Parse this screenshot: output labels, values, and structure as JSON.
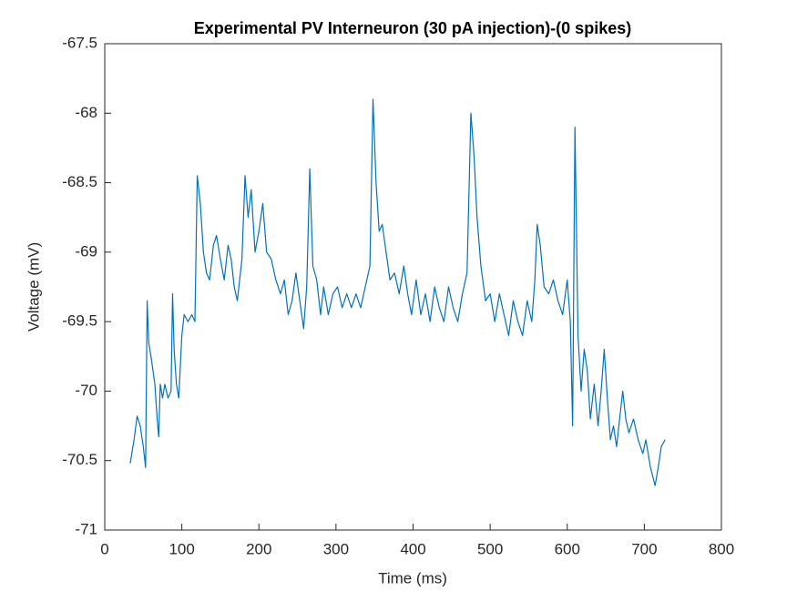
{
  "chart_data": {
    "type": "line",
    "title": "Experimental PV Interneuron (30 pA injection)-(0 spikes)",
    "xlabel": "Time (ms)",
    "ylabel": "Voltage (mV)",
    "x": [
      33,
      38,
      42,
      46,
      50,
      53,
      55,
      57,
      60,
      65,
      68,
      70,
      72,
      75,
      78,
      82,
      86,
      88,
      90,
      93,
      96,
      100,
      103,
      108,
      113,
      117,
      120,
      124,
      128,
      132,
      136,
      141,
      145,
      150,
      155,
      160,
      164,
      168,
      172,
      178,
      182,
      186,
      190,
      195,
      200,
      205,
      210,
      216,
      222,
      228,
      233,
      238,
      243,
      248,
      253,
      258,
      262,
      266,
      270,
      275,
      280,
      284,
      290,
      296,
      302,
      308,
      314,
      320,
      326,
      332,
      338,
      344,
      348,
      352,
      356,
      360,
      365,
      370,
      376,
      382,
      388,
      393,
      398,
      404,
      410,
      416,
      422,
      428,
      434,
      440,
      446,
      452,
      458,
      464,
      470,
      475,
      479,
      483,
      488,
      494,
      500,
      506,
      512,
      518,
      524,
      530,
      536,
      542,
      548,
      554,
      558,
      561,
      565,
      570,
      576,
      582,
      588,
      594,
      600,
      604,
      607,
      610,
      614,
      618,
      622,
      626,
      630,
      635,
      640,
      644,
      648,
      652,
      656,
      660,
      664,
      668,
      672,
      676,
      680,
      686,
      692,
      698,
      702,
      708,
      714,
      718,
      722,
      727
    ],
    "series": [
      {
        "color": "#0072bd",
        "values": [
          -70.52,
          -70.35,
          -70.18,
          -70.25,
          -70.4,
          -70.55,
          -69.35,
          -69.65,
          -69.75,
          -69.95,
          -70.2,
          -70.33,
          -69.95,
          -70.05,
          -69.95,
          -70.05,
          -70.0,
          -69.3,
          -69.7,
          -69.95,
          -70.05,
          -69.6,
          -69.45,
          -69.5,
          -69.45,
          -69.5,
          -68.45,
          -68.65,
          -69.0,
          -69.15,
          -69.2,
          -68.95,
          -68.88,
          -69.05,
          -69.2,
          -68.95,
          -69.05,
          -69.25,
          -69.35,
          -69.05,
          -68.45,
          -68.75,
          -68.55,
          -69.0,
          -68.85,
          -68.65,
          -69.0,
          -69.05,
          -69.2,
          -69.3,
          -69.2,
          -69.45,
          -69.35,
          -69.15,
          -69.35,
          -69.55,
          -69.25,
          -68.4,
          -69.1,
          -69.2,
          -69.45,
          -69.25,
          -69.45,
          -69.3,
          -69.25,
          -69.4,
          -69.3,
          -69.4,
          -69.3,
          -69.4,
          -69.25,
          -69.1,
          -67.9,
          -68.5,
          -68.85,
          -68.8,
          -69.0,
          -69.2,
          -69.15,
          -69.3,
          -69.1,
          -69.3,
          -69.45,
          -69.2,
          -69.45,
          -69.3,
          -69.5,
          -69.25,
          -69.4,
          -69.5,
          -69.25,
          -69.4,
          -69.5,
          -69.3,
          -69.15,
          -68.0,
          -68.3,
          -68.75,
          -69.1,
          -69.35,
          -69.3,
          -69.5,
          -69.3,
          -69.45,
          -69.6,
          -69.35,
          -69.5,
          -69.6,
          -69.35,
          -69.5,
          -69.2,
          -68.8,
          -68.95,
          -69.25,
          -69.3,
          -69.2,
          -69.35,
          -69.45,
          -69.2,
          -69.5,
          -70.25,
          -68.1,
          -69.6,
          -70.0,
          -69.7,
          -69.85,
          -70.2,
          -69.95,
          -70.25,
          -70.0,
          -69.7,
          -70.05,
          -70.35,
          -70.25,
          -70.4,
          -70.2,
          -70.0,
          -70.2,
          -70.3,
          -70.2,
          -70.35,
          -70.45,
          -70.35,
          -70.55,
          -70.68,
          -70.55,
          -70.4,
          -70.35
        ]
      }
    ],
    "xlim": [
      0,
      800
    ],
    "xticks": [
      0,
      100,
      200,
      300,
      400,
      500,
      600,
      700,
      800
    ],
    "ylim": [
      -71,
      -67.5
    ],
    "yticks": [
      -71,
      -70.5,
      -70,
      -69.5,
      -69,
      -68.5,
      -68,
      -67.5
    ]
  }
}
